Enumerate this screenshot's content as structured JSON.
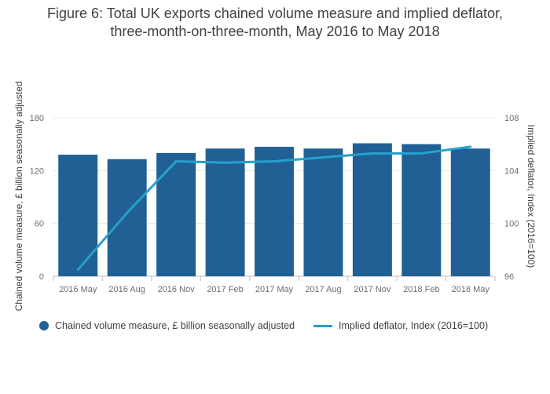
{
  "title": {
    "line1": "Figure 6: Total UK exports chained volume measure and implied deflator,",
    "line2": "three-month-on-three-month, May 2016 to May 2018"
  },
  "colors": {
    "bar": "#206095",
    "line": "#27a0cc",
    "grid": "#e6e6e6"
  },
  "chart_data": {
    "type": "bar",
    "title": "Figure 6: Total UK exports chained volume measure and implied deflator, three-month-on-three-month, May 2016 to May 2018",
    "categories": [
      "2016 May",
      "2016 Aug",
      "2016 Nov",
      "2017 Feb",
      "2017 May",
      "2017 Aug",
      "2017 Nov",
      "2018 Feb",
      "2018 May"
    ],
    "series": [
      {
        "name": "Chained volume measure, £ billion seasonally adjusted",
        "type": "bar",
        "axis": "left",
        "values": [
          138,
          133,
          140,
          145,
          147,
          145,
          151,
          150,
          145
        ]
      },
      {
        "name": "Implied deflator, Index (2016=100)",
        "type": "line",
        "axis": "right",
        "values": [
          96.5,
          100.8,
          104.7,
          104.6,
          104.7,
          105.0,
          105.3,
          105.3,
          105.8
        ]
      }
    ],
    "ylabel": "Chained volume measure, £ billion seasonally adjusted",
    "y2label": "Implied deflator, Index (2016=100)",
    "ylim": [
      0,
      180
    ],
    "y2lim": [
      96,
      108
    ],
    "yticks": [
      "0",
      "60",
      "120",
      "180"
    ],
    "y2ticks": [
      "96",
      "100",
      "104",
      "108"
    ],
    "grid": true,
    "legend_position": "bottom-left"
  }
}
